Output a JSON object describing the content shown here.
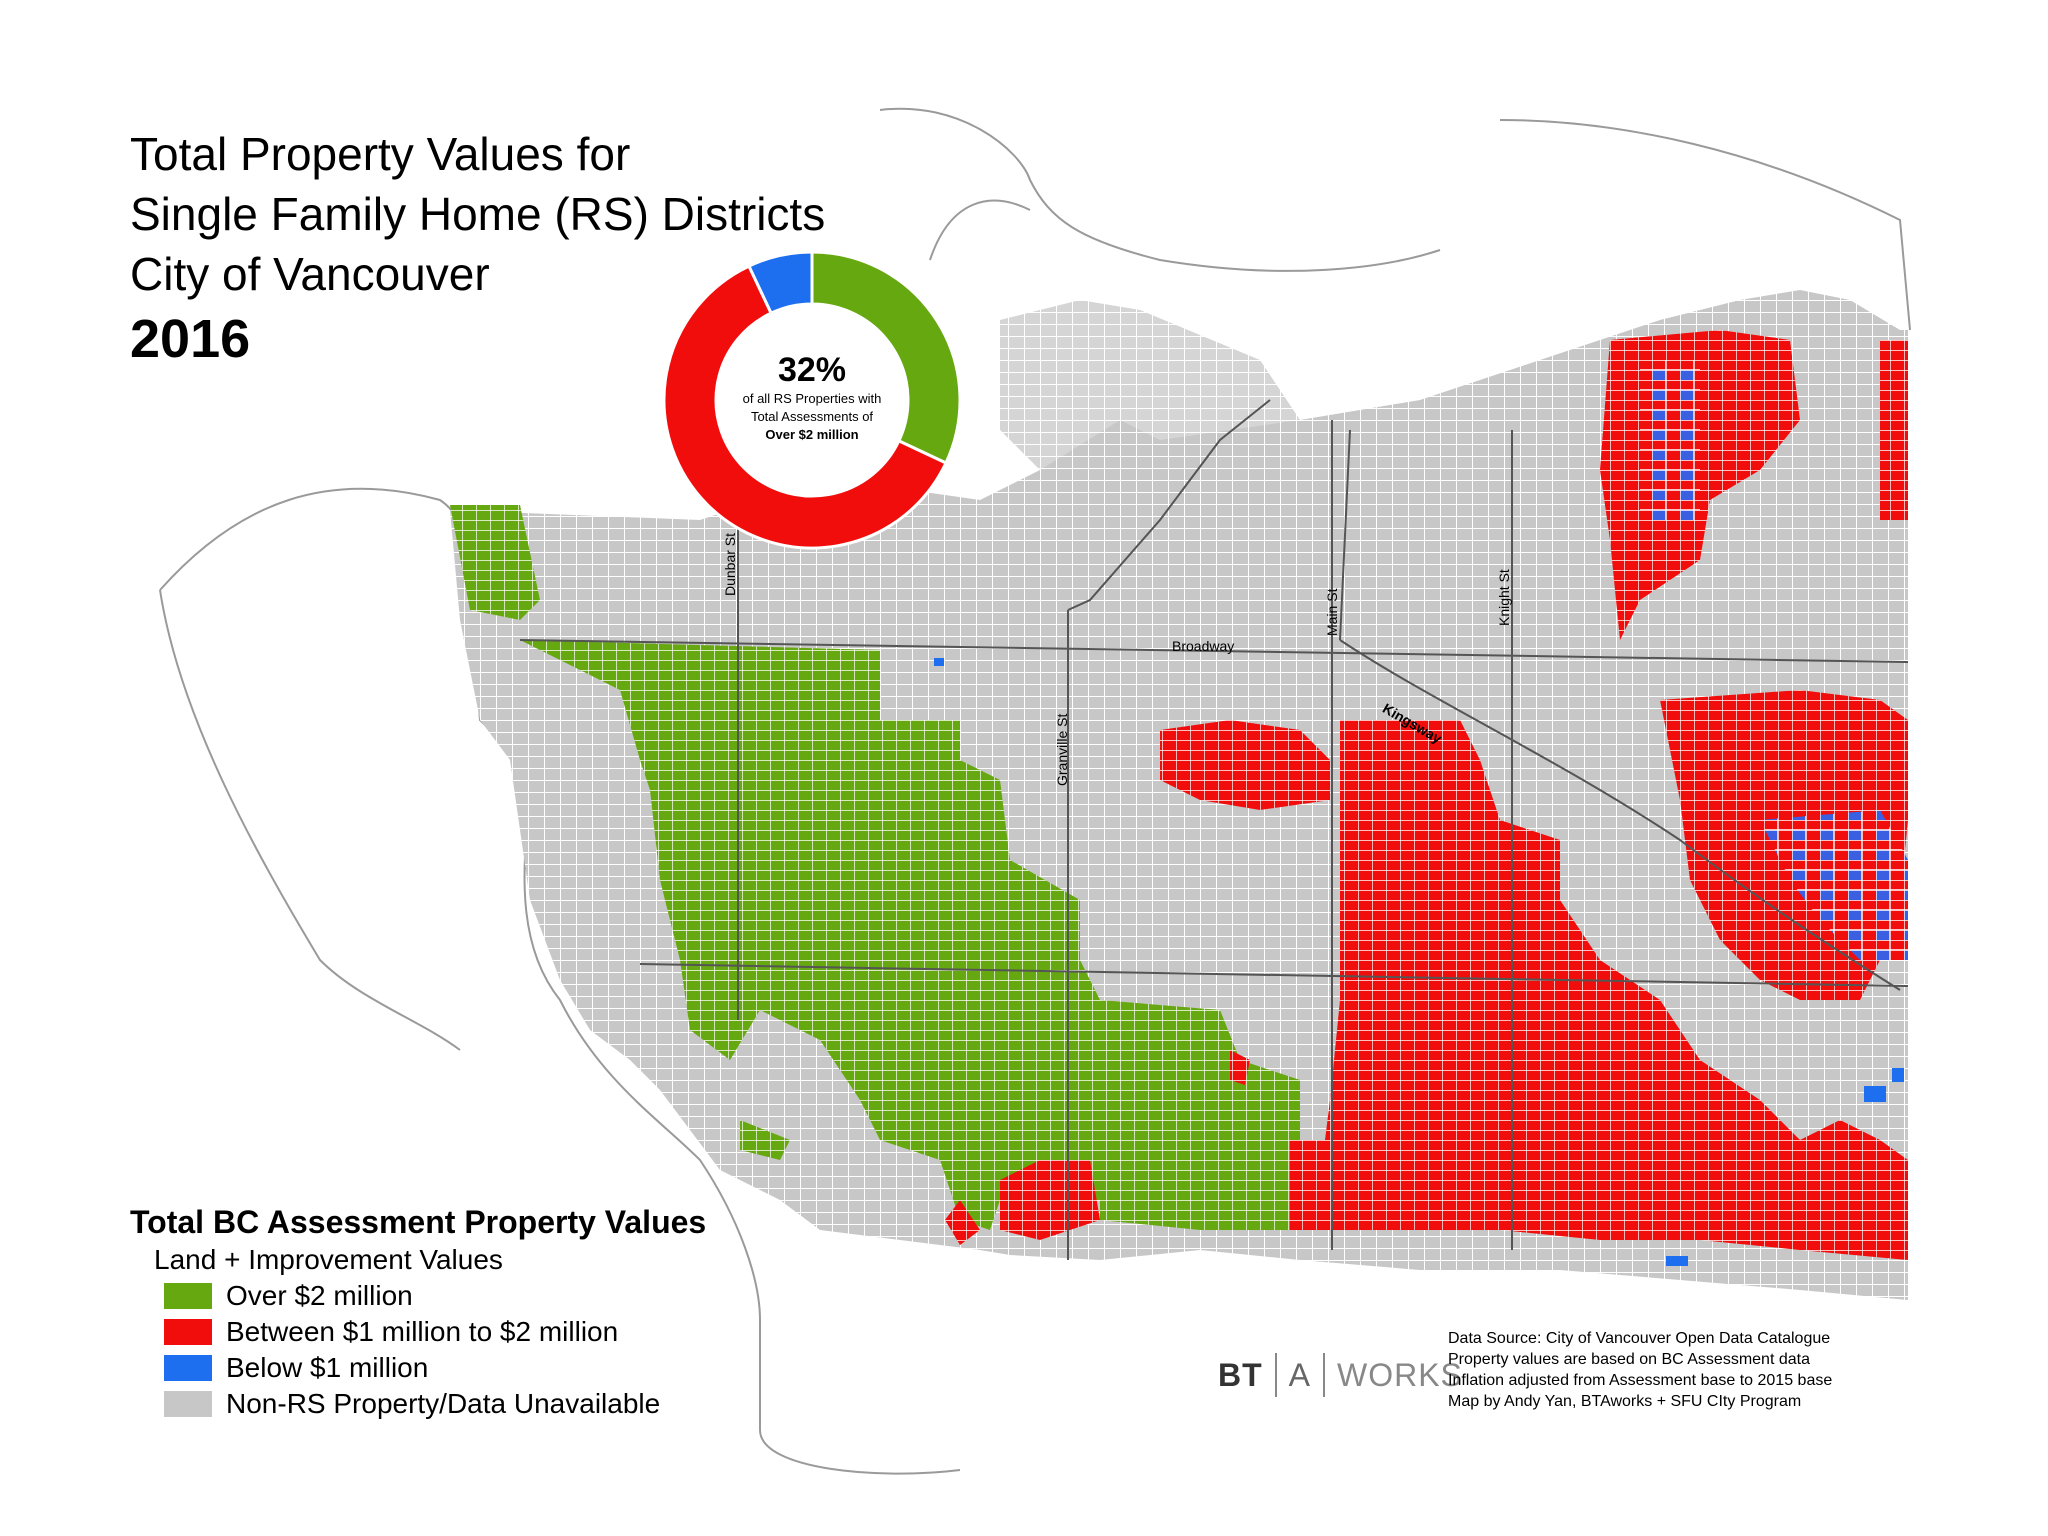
{
  "title": {
    "line1": "Total Property Values for",
    "line2": "Single Family Home (RS) Districts",
    "line3": "City of Vancouver",
    "year": "2016"
  },
  "donut": {
    "percent": "32%",
    "caption1": "of all RS Properties with",
    "caption2": "Total Assessments of",
    "caption3": "Over $2 million",
    "segments": [
      {
        "category": "Over $2 million",
        "share": 0.32,
        "color": "#66a80f"
      },
      {
        "category": "Between $1 million to $2 million",
        "share": 0.61,
        "color": "#f20d0d"
      },
      {
        "category": "Below $1 million",
        "share": 0.07,
        "color": "#1e6ff0"
      }
    ]
  },
  "streets": {
    "dunbar": "Dunbar St",
    "granville": "Granville St",
    "main": "Main St",
    "knight": "Knight St",
    "broadway": "Broadway",
    "kingsway": "Kingsway"
  },
  "legend": {
    "title": "Total BC Assessment Property Values",
    "subtitle": "Land + Improvement Values",
    "items": [
      {
        "label": "Over $2 million",
        "color": "#66a80f"
      },
      {
        "label": "Between $1 million to $2 million",
        "color": "#f20d0d"
      },
      {
        "label": "Below $1 million",
        "color": "#1e6ff0"
      },
      {
        "label": "Non-RS Property/Data Unavailable",
        "color": "#c7c7c7"
      }
    ]
  },
  "logo": {
    "part1": "BT",
    "part2": "A",
    "part3": "WORKS"
  },
  "source": {
    "line1": "Data Source: City of Vancouver Open Data Catalogue",
    "line2": "Property values are based on BC Assessment data",
    "line3": "Inflation adjusted from Assessment base to 2015 base",
    "line4": "Map by Andy Yan, BTAworks + SFU CIty Program"
  }
}
